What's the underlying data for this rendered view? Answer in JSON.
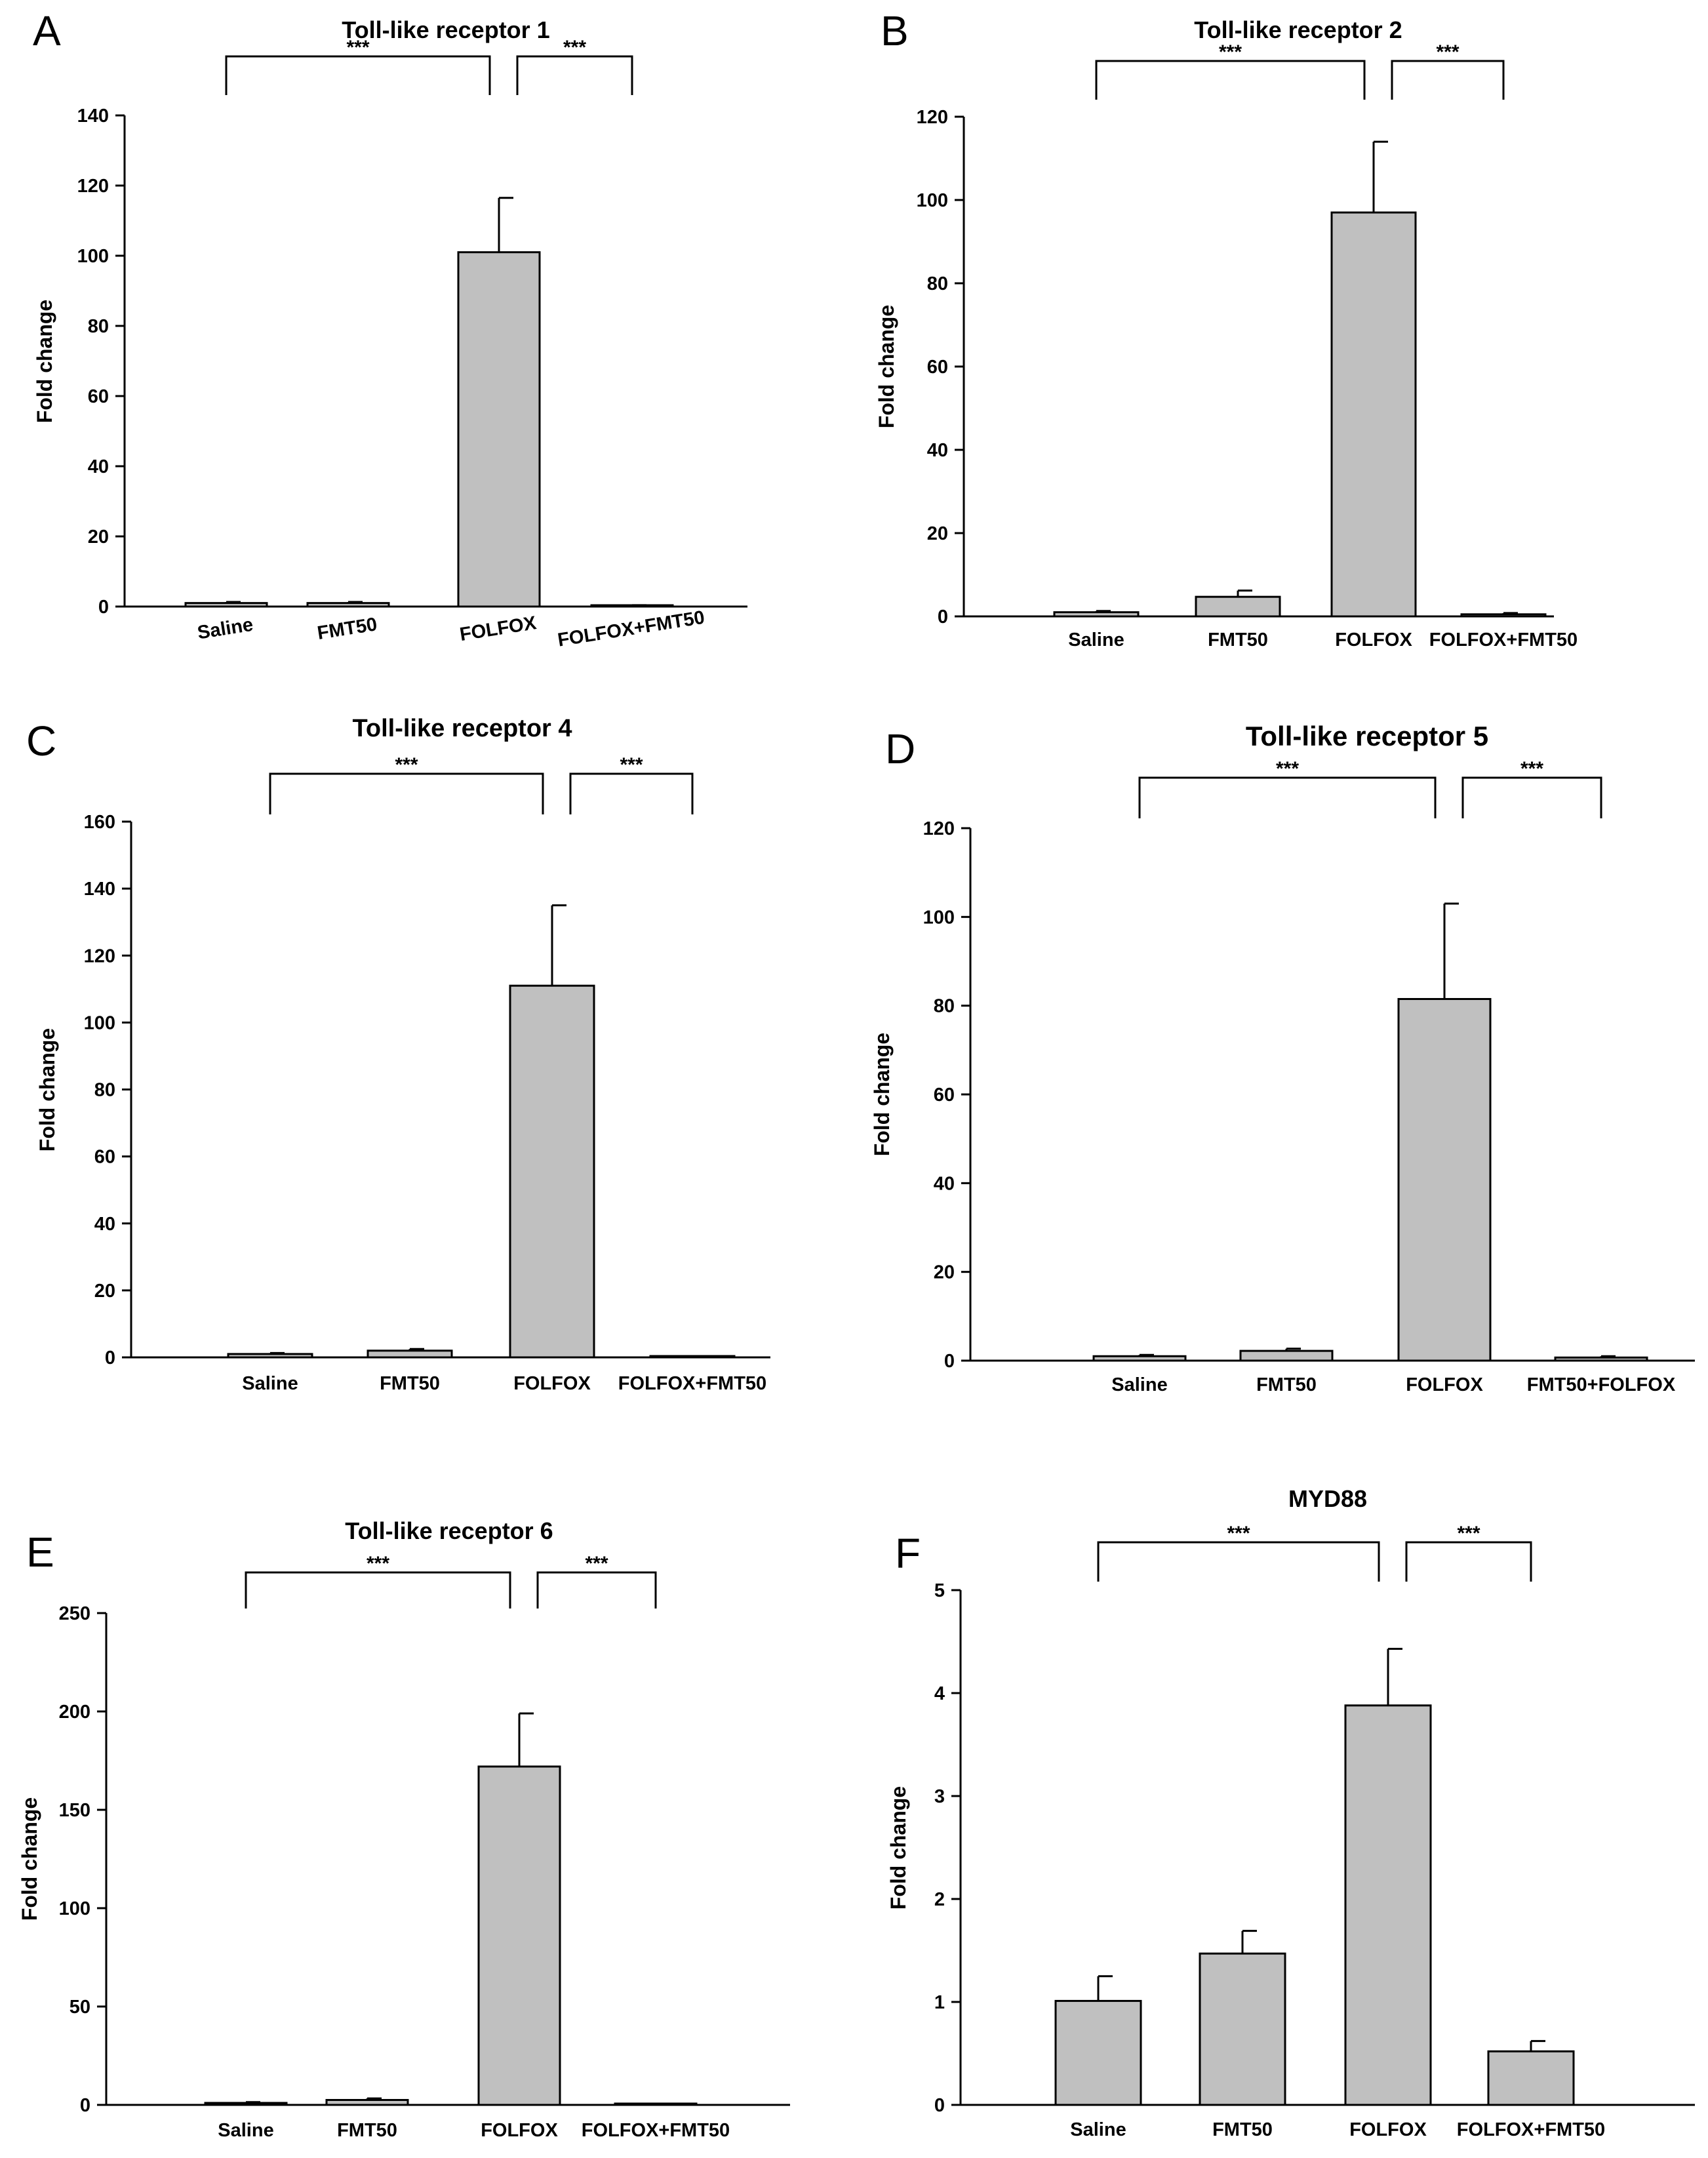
{
  "figure": {
    "bar_color": "#c0c0c0",
    "bar_stroke": "#000000"
  },
  "chart_data": [
    {
      "letter": "A",
      "type": "bar",
      "title": "Toll-like receptor 1",
      "xlabel": "",
      "ylabel": "Fold change",
      "ylim": [
        0,
        140
      ],
      "yticks": [
        0,
        20,
        40,
        60,
        80,
        100,
        120,
        140
      ],
      "categories": [
        "Saline",
        "FMT50",
        "FOLFOX",
        "FOLFOX+FMT50"
      ],
      "values": [
        1,
        1,
        101,
        0.3
      ],
      "errors": [
        0.3,
        0.3,
        15.5,
        0.1
      ],
      "significance": [
        {
          "from": 0,
          "to": 2,
          "label": "***"
        },
        {
          "from": 2,
          "to": 3,
          "label": "***"
        }
      ]
    },
    {
      "letter": "B",
      "type": "bar",
      "title": "Toll-like receptor 2",
      "xlabel": "",
      "ylabel": "Fold change",
      "ylim": [
        0,
        120
      ],
      "yticks": [
        0,
        20,
        40,
        60,
        80,
        100,
        120
      ],
      "categories": [
        "Saline",
        "FMT50",
        "FOLFOX",
        "FOLFOX+FMT50"
      ],
      "values": [
        1,
        4.7,
        97,
        0.5
      ],
      "errors": [
        0.3,
        1.5,
        17,
        0.3
      ],
      "significance": [
        {
          "from": 0,
          "to": 2,
          "label": "***"
        },
        {
          "from": 2,
          "to": 3,
          "label": "***"
        }
      ]
    },
    {
      "letter": "C",
      "type": "bar",
      "title": "Toll-like receptor 4",
      "xlabel": "",
      "ylabel": "Fold change",
      "ylim": [
        0,
        160
      ],
      "yticks": [
        0,
        20,
        40,
        60,
        80,
        100,
        120,
        140,
        160
      ],
      "categories": [
        "Saline",
        "FMT50",
        "FOLFOX",
        "FOLFOX+FMT50"
      ],
      "values": [
        1,
        2,
        111,
        0.3
      ],
      "errors": [
        0.3,
        0.5,
        24,
        0.1
      ],
      "significance": [
        {
          "from": 0,
          "to": 2,
          "label": "***"
        },
        {
          "from": 2,
          "to": 3,
          "label": "***"
        }
      ]
    },
    {
      "letter": "D",
      "type": "bar",
      "title": "Toll-like receptor 5",
      "xlabel": "",
      "ylabel": "Fold change",
      "ylim": [
        0,
        120
      ],
      "yticks": [
        0,
        20,
        40,
        60,
        80,
        100,
        120
      ],
      "categories": [
        "Saline",
        "FMT50",
        "FOLFOX",
        "FMT50+FOLFOX"
      ],
      "values": [
        1,
        2.2,
        81.5,
        0.7
      ],
      "errors": [
        0.3,
        0.5,
        21.5,
        0.3
      ],
      "significance": [
        {
          "from": 0,
          "to": 2,
          "label": "***"
        },
        {
          "from": 2,
          "to": 3,
          "label": "***"
        }
      ]
    },
    {
      "letter": "E",
      "type": "bar",
      "title": "Toll-like receptor 6",
      "xlabel": "",
      "ylabel": "Fold change",
      "ylim": [
        0,
        250
      ],
      "yticks": [
        0,
        50,
        100,
        150,
        200,
        250
      ],
      "categories": [
        "Saline",
        "FMT50",
        "FOLFOX",
        "FOLFOX+FMT50"
      ],
      "values": [
        1,
        2.5,
        172,
        0.2
      ],
      "errors": [
        0.4,
        0.8,
        27,
        0.1
      ],
      "significance": [
        {
          "from": 0,
          "to": 2,
          "label": "***"
        },
        {
          "from": 2,
          "to": 3,
          "label": "***"
        }
      ]
    },
    {
      "letter": "F",
      "type": "bar",
      "title": "MYD88",
      "xlabel": "",
      "ylabel": "Fold change",
      "ylim": [
        0,
        5
      ],
      "yticks": [
        0,
        1,
        2,
        3,
        4,
        5
      ],
      "categories": [
        "Saline",
        "FMT50",
        "FOLFOX",
        "FOLFOX+FMT50"
      ],
      "values": [
        1.01,
        1.47,
        3.88,
        0.52
      ],
      "errors": [
        0.24,
        0.22,
        0.55,
        0.1
      ],
      "significance": [
        {
          "from": 0,
          "to": 2,
          "label": "***"
        },
        {
          "from": 2,
          "to": 3,
          "label": "***"
        }
      ]
    }
  ]
}
